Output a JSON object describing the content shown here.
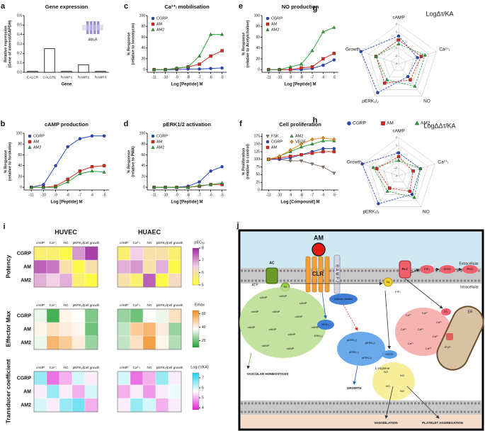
{
  "chart_data": [
    {
      "type": "bar",
      "panel": "a",
      "title": "Gene expression",
      "xlabel": "Gene",
      "ylabel": [
        "Relative expression",
        "(Gene of interest/GAPDH)"
      ],
      "categories": [
        "CALCR",
        "CALCRL",
        "RAMP1",
        "RAMP2",
        "RAMP3"
      ],
      "values": [
        0.01,
        0.25,
        0.01,
        0.08,
        0.01
      ],
      "color": "#ffffff",
      "edgecolor": "#000000",
      "annotation": "AM₂R",
      "ylim": [
        0,
        0.6
      ],
      "yticks": [
        {
          "value": 0,
          "label": "0.0"
        },
        {
          "value": 0.1,
          "label": "0.1"
        },
        {
          "value": 0.2,
          "label": "0.2"
        },
        {
          "value": 0.3,
          "label": "0.3"
        },
        {
          "value": 0.4,
          "label": "0.4"
        },
        {
          "value": 0.5,
          "label": "0.5"
        },
        {
          "value": 0.6,
          "label": "0.6"
        }
      ]
    },
    {
      "type": "line",
      "panel": "c",
      "title": "Ca²⁺ᵢ mobilisation",
      "xlabel": "Log [Peptide] M",
      "ylabel": [
        "% Response",
        "(relative to Ionomycin)"
      ],
      "x": [
        -11,
        -10,
        -9,
        -8,
        -7,
        -6,
        -5
      ],
      "xlim": [
        -11.6,
        -4.6
      ],
      "xticks": [
        -11,
        -10,
        -9,
        -8,
        -7,
        -6,
        -5
      ],
      "ylim": [
        -5,
        100
      ],
      "yticks": [
        0,
        20,
        40,
        60,
        80,
        100
      ],
      "legend_columns": 1,
      "series": [
        {
          "name": "CGRP",
          "color": "#2746c8",
          "marker": "circle",
          "values": [
            0,
            0,
            0,
            1,
            1,
            2,
            3
          ]
        },
        {
          "name": "AM",
          "color": "#e0261b",
          "marker": "square",
          "values": [
            0,
            0,
            2,
            5,
            10,
            25,
            35
          ]
        },
        {
          "name": "AM2",
          "color": "#2ea83a",
          "marker": "triangle",
          "values": [
            0,
            0,
            3,
            5,
            25,
            65,
            65
          ]
        }
      ]
    },
    {
      "type": "line",
      "panel": "e",
      "title": "NO production",
      "xlabel": "Log [Peptide] M",
      "ylabel": [
        "% Response",
        "(relative to Acetylcholine)"
      ],
      "x": [
        -11,
        -10,
        -9,
        -8,
        -7,
        -6,
        -5
      ],
      "xlim": [
        -11.6,
        -4.6
      ],
      "xticks": [
        -11,
        -10,
        -9,
        -8,
        -7,
        -6,
        -5
      ],
      "ylim": [
        -5,
        100
      ],
      "yticks": [
        0,
        20,
        40,
        60,
        80,
        100
      ],
      "legend_columns": 1,
      "series": [
        {
          "name": "CGRP",
          "color": "#2746c8",
          "marker": "circle",
          "values": [
            0,
            0,
            0,
            0,
            2,
            8,
            18
          ]
        },
        {
          "name": "AM",
          "color": "#e0261b",
          "marker": "square",
          "values": [
            0,
            0,
            0,
            3,
            5,
            20,
            30
          ]
        },
        {
          "name": "AM2",
          "color": "#2ea83a",
          "marker": "triangle",
          "values": [
            0,
            0,
            5,
            10,
            35,
            70,
            78
          ]
        }
      ]
    },
    {
      "type": "radar",
      "panel": "g",
      "title": "LogΔτ/KA",
      "axes": [
        "cAMP",
        "Ca²⁺ᵢ",
        "NO",
        "pERK₁/₂",
        "Growth"
      ],
      "rlim": [
        -3,
        2
      ],
      "rticks": [
        -3,
        -2,
        -1,
        0,
        1,
        2
      ],
      "legend": true,
      "series": [
        {
          "name": "CGRP",
          "color": "#2746c8",
          "marker": "circle",
          "values": [
            0.5,
            -0.5,
            -1,
            1.5,
            2
          ]
        },
        {
          "name": "AM",
          "color": "#e0261b",
          "marker": "square",
          "values": [
            0,
            0,
            -0.5,
            0,
            0
          ]
        },
        {
          "name": "AM2",
          "color": "#2ea83a",
          "marker": "triangle",
          "values": [
            -0.5,
            0.5,
            0.5,
            -0.5,
            0
          ]
        }
      ]
    },
    {
      "type": "line",
      "panel": "b",
      "title": "cAMP production",
      "xlabel": "Log [Peptide] M",
      "ylabel": [
        "% Response",
        "(relative to forskolin)"
      ],
      "x": [
        -11,
        -10,
        -9,
        -8,
        -7,
        -6,
        -5
      ],
      "xlim": [
        -11.6,
        -4.6
      ],
      "xticks": [
        -11,
        -10,
        -9,
        -8,
        -7,
        -6,
        -5
      ],
      "ylim": [
        -5,
        100
      ],
      "yticks": [
        0,
        20,
        40,
        60,
        80,
        100
      ],
      "legend_columns": 1,
      "series": [
        {
          "name": "CGRP",
          "color": "#2746c8",
          "marker": "circle",
          "values": [
            0,
            5,
            40,
            75,
            90,
            95,
            95
          ]
        },
        {
          "name": "AM",
          "color": "#e0261b",
          "marker": "square",
          "values": [
            0,
            0,
            2,
            15,
            30,
            38,
            40
          ]
        },
        {
          "name": "AM2",
          "color": "#2ea83a",
          "marker": "triangle",
          "values": [
            0,
            0,
            0,
            10,
            25,
            30,
            28
          ]
        }
      ]
    },
    {
      "type": "line",
      "panel": "d",
      "title": "pERK1/2 activation",
      "xlabel": "Log [Peptide] M",
      "ylabel": [
        "% Response",
        "(relative to PMA)"
      ],
      "x": [
        -11,
        -10,
        -9,
        -8,
        -7,
        -6,
        -5
      ],
      "xlim": [
        -11.6,
        -4.6
      ],
      "xticks": [
        -11,
        -10,
        -9,
        -8,
        -7,
        -6,
        -5
      ],
      "ylim": [
        -5,
        100
      ],
      "yticks": [
        0,
        20,
        40,
        60,
        80,
        100
      ],
      "legend_columns": 1,
      "series": [
        {
          "name": "CGRP",
          "color": "#2746c8",
          "marker": "circle",
          "values": [
            0,
            0,
            0,
            2,
            10,
            30,
            38
          ]
        },
        {
          "name": "AM",
          "color": "#e0261b",
          "marker": "square",
          "values": [
            0,
            0,
            0,
            0,
            2,
            5,
            5
          ]
        },
        {
          "name": "AM2",
          "color": "#2ea83a",
          "marker": "triangle",
          "values": [
            0,
            0,
            0,
            0,
            3,
            5,
            8
          ]
        }
      ]
    },
    {
      "type": "line",
      "panel": "f",
      "title": "Cell proliferation",
      "xlabel": "Log [Compound] M",
      "ylabel": [
        "% Proliferation",
        "(relative to control)"
      ],
      "x": [
        -11,
        -10,
        -9,
        -8,
        -7,
        -6,
        -5
      ],
      "xlim": [
        -11.6,
        -4.6
      ],
      "xticks": [
        -11,
        -10,
        -9,
        -8,
        -7,
        -6,
        -5
      ],
      "ylim": [
        0,
        185
      ],
      "yticks": [
        0,
        25,
        50,
        75,
        100,
        125,
        150,
        175
      ],
      "legend_columns": 2,
      "series": [
        {
          "name": "FSK",
          "color": "#8a7d70",
          "marker": "triangle-down",
          "values": [
            100,
            100,
            95,
            95,
            85,
            75,
            55
          ]
        },
        {
          "name": "CGRP",
          "color": "#2746c8",
          "marker": "circle",
          "values": [
            100,
            100,
            105,
            115,
            125,
            135,
            135
          ]
        },
        {
          "name": "AM",
          "color": "#e0261b",
          "marker": "square",
          "values": [
            100,
            105,
            110,
            115,
            120,
            125,
            125
          ]
        },
        {
          "name": "AM2",
          "color": "#2ea83a",
          "marker": "triangle",
          "values": [
            100,
            110,
            125,
            140,
            150,
            160,
            160
          ]
        },
        {
          "name": "VEGF",
          "color": "#e8901a",
          "marker": "diamond",
          "values": [
            100,
            110,
            130,
            150,
            165,
            170,
            165
          ]
        }
      ]
    },
    {
      "type": "radar",
      "panel": "h",
      "title": "LogΔΔτ/KA",
      "axes": [
        "cAMP",
        "Ca²⁺ᵢ",
        "NO",
        "pERK₁/₂",
        "Growth"
      ],
      "rlim": [
        -3,
        2
      ],
      "rticks": [
        -3,
        -2,
        -1,
        0,
        1,
        2
      ],
      "legend": false,
      "series": [
        {
          "name": "CGRP",
          "color": "#2746c8",
          "marker": "circle",
          "values": [
            0,
            0,
            0,
            1.5,
            2
          ]
        },
        {
          "name": "AM",
          "color": "#e0261b",
          "marker": "square",
          "values": [
            -0.5,
            -1,
            -0.5,
            -1,
            0
          ]
        },
        {
          "name": "AM2",
          "color": "#2ea83a",
          "marker": "triangle",
          "values": [
            -1,
            0,
            0.5,
            -0.5,
            0.5
          ]
        }
      ]
    },
    {
      "type": "heatmap",
      "panel": "i",
      "columns": [
        "HUVEC",
        "HUAEC"
      ],
      "categories": [
        "cAMP",
        "Ca²⁺ᵢ",
        "NO",
        "pERK₁/₂",
        "Cell growth"
      ],
      "ligands": [
        "CGRP",
        "AM",
        "AM2"
      ],
      "groups": [
        {
          "name": "Potency",
          "colorbar_title": "pEC₅₀",
          "clim": [
            5,
            8
          ],
          "cticks": [
            5,
            6,
            7,
            8
          ],
          "colors": [
            "#ffff33",
            "#f3d0e6",
            "#9c2a9e"
          ],
          "values": [
            [
              [
                5.5,
                5.5,
                5.2,
                7.0,
                7.8
              ],
              [
                7.5,
                7.3,
                6.0,
                5.2,
                6.0
              ],
              [
                6.8,
                6.5,
                6.8,
                5.5,
                5.2
              ]
            ],
            [
              [
                5.5,
                6.5,
                6.0,
                6.0,
                5.5
              ],
              [
                6.8,
                7.0,
                6.0,
                6.8,
                5.2
              ],
              [
                6.0,
                5.5,
                7.5,
                5.2,
                6.2
              ]
            ]
          ]
        },
        {
          "name": "Effector Max",
          "colorbar_title": "Emax",
          "clim": [
            10,
            65
          ],
          "cticks": [
            20,
            40,
            60
          ],
          "colors": [
            "#1e9e2e",
            "#ffffff",
            "#f08c1e"
          ],
          "values": [
            [
              [
                35,
                15,
                40,
                38,
                22
              ],
              [
                40,
                45,
                42,
                40,
                20
              ],
              [
                35,
                55,
                50,
                42,
                25
              ]
            ],
            [
              [
                25,
                20,
                38,
                35,
                45
              ],
              [
                30,
                50,
                55,
                42,
                25
              ],
              [
                30,
                45,
                60,
                40,
                28
              ]
            ]
          ]
        },
        {
          "name": "Transducer coefficient",
          "colorbar_title": "Log (τ/KA)",
          "clim": [
            3.8,
            7.5
          ],
          "cticks": [
            4,
            5,
            6,
            7
          ],
          "colors": [
            "#e020d0",
            "#ffffff",
            "#20d0e8"
          ],
          "values": [
            [
              [
                6.5,
                4.5,
                5.0,
                6.0,
                5.5
              ],
              [
                5.5,
                6.5,
                5.5,
                5.0,
                6.0
              ],
              [
                6.0,
                5.5,
                6.5,
                6.8,
                5.0
              ]
            ],
            [
              [
                6.0,
                4.5,
                5.0,
                6.5,
                5.5
              ],
              [
                5.0,
                5.5,
                4.8,
                5.5,
                5.8
              ],
              [
                5.5,
                6.5,
                6.0,
                5.0,
                5.5
              ]
            ]
          ]
        }
      ]
    }
  ],
  "diagram": {
    "panel": "j",
    "ligand": "AM",
    "receptor": "CLR",
    "ramp": "RAMP2",
    "extracellular": "Extracellular",
    "intracellular": "Intracellular",
    "ac": "AC",
    "gs": "Gs",
    "atp": "ATP",
    "camp": [
      "cAMP",
      "cAMP",
      "cAMP",
      "cAMP",
      "cAMP",
      "cAMP",
      "cAMP",
      "cAMP",
      "cAMP",
      "cAMP",
      "cAMP",
      "cAMP"
    ],
    "mediator": "Unknown mediator",
    "mek": "MEK₁/₂",
    "erk": "ERK₁/₂",
    "perk": [
      "pERK₁/₂",
      "pERK₁/₂",
      "pERK₁/₂",
      "pERK₁/₂"
    ],
    "gq": "Gq",
    "plc": "PLC",
    "pip2": "PIP₂",
    "pip2b": "PIP₂",
    "dag": "DAG",
    "pkc": "PKC",
    "ip3": "IP₃",
    "ip3r": "IP₃R",
    "er": "ER",
    "ca": [
      "Ca²⁺",
      "Ca²⁺",
      "Ca²⁺",
      "Ca²⁺",
      "Ca²⁺",
      "Ca²⁺",
      "Ca²⁺",
      "Ca²⁺"
    ],
    "enos": "eNOS",
    "larg": "L-Arginine",
    "no": [
      "NO",
      "NO",
      "NO",
      "NO"
    ],
    "homeostasis": "VASCULAR HOMEOSTASIS",
    "growth": "GROWTH",
    "vasodilation": "VASODILATION",
    "platelet": "PLATELET AGGREGATION"
  }
}
